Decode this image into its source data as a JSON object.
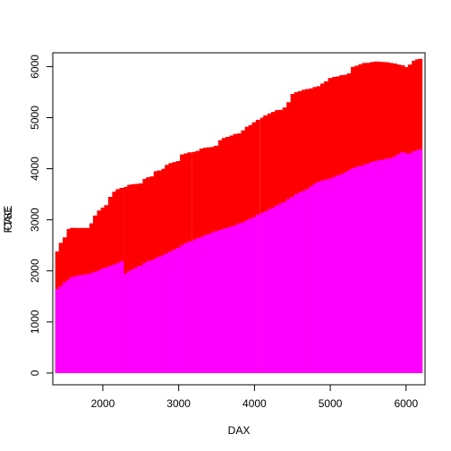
{
  "chart_data": {
    "type": "bar",
    "title": "",
    "xlabel": "DAX",
    "ylabel": [
      "FTSE",
      "CAC"
    ],
    "xlim": [
      1340,
      6250
    ],
    "ylim": [
      -230,
      6270
    ],
    "x_ticks": [
      2000,
      3000,
      4000,
      5000,
      6000
    ],
    "y_ticks": [
      0,
      1000,
      2000,
      3000,
      4000,
      5000,
      6000
    ],
    "grid": false,
    "legend": "none",
    "series": [
      {
        "color": "#ff0000",
        "x": [
          1402,
          1449,
          1500,
          1553,
          1597,
          1651,
          1703,
          1755,
          1798,
          1852,
          1900,
          1953,
          2003,
          2047,
          2100,
          2153,
          2199,
          2248,
          2305,
          2351,
          2399,
          2448,
          2497,
          2555,
          2598,
          2648,
          2700,
          2746,
          2804,
          2847,
          2896,
          2948,
          2996,
          3047,
          3096,
          3145,
          3205,
          3251,
          3303,
          3351,
          3396,
          3448,
          3495,
          3551,
          3599,
          3645,
          3700,
          3747,
          3799,
          3853,
          3903,
          3950,
          3997,
          4046,
          4105,
          4146,
          4199,
          4248,
          4297,
          4349,
          4400,
          4452,
          4505,
          4554,
          4601,
          4651,
          4697,
          4752,
          4799,
          4846,
          4898,
          4947,
          5000,
          5055,
          5103,
          5151,
          5199,
          5249,
          5301,
          5352,
          5402,
          5449,
          5495,
          5552,
          5600,
          5648,
          5697,
          5752,
          5801,
          5852,
          5900,
          5954,
          6002,
          6053,
          6105,
          6149,
          6187
        ],
        "values": [
          2380,
          2550,
          2657,
          2820,
          2843,
          2840,
          2840,
          2840,
          2840,
          2930,
          3083,
          3183,
          3240,
          3287,
          3450,
          3550,
          3600,
          3624,
          3645,
          3685,
          3696,
          3703,
          3711,
          3800,
          3833,
          3850,
          3950,
          3967,
          4000,
          4076,
          4110,
          4130,
          4150,
          4280,
          4300,
          4320,
          4330,
          4350,
          4393,
          4411,
          4420,
          4425,
          4450,
          4559,
          4601,
          4624,
          4650,
          4680,
          4690,
          4750,
          4822,
          4855,
          4910,
          4958,
          4999,
          5044,
          5080,
          5112,
          5147,
          5152,
          5198,
          5303,
          5463,
          5500,
          5519,
          5545,
          5561,
          5574,
          5600,
          5616,
          5668,
          5712,
          5777,
          5796,
          5807,
          5831,
          5839,
          5867,
          5993,
          6019,
          6046,
          6070,
          6073,
          6088,
          6099,
          6096,
          6091,
          6086,
          6070,
          6060,
          6041,
          6027,
          5990,
          6040,
          6114,
          6140,
          6152
        ]
      },
      {
        "color": "#ff00ff",
        "x": [
          1402,
          1449,
          1500,
          1553,
          1597,
          1651,
          1703,
          1755,
          1798,
          1852,
          1900,
          1953,
          2003,
          2047,
          2100,
          2153,
          2199,
          2248,
          2305,
          2351,
          2399,
          2448,
          2497,
          2555,
          2598,
          2648,
          2700,
          2746,
          2804,
          2847,
          2896,
          2948,
          2996,
          3047,
          3096,
          3145,
          3205,
          3251,
          3303,
          3351,
          3396,
          3448,
          3495,
          3551,
          3599,
          3645,
          3700,
          3747,
          3799,
          3853,
          3903,
          3950,
          3997,
          4046,
          4105,
          4146,
          4199,
          4248,
          4297,
          4349,
          4400,
          4452,
          4505,
          4554,
          4601,
          4651,
          4697,
          4752,
          4799,
          4846,
          4898,
          4947,
          5000,
          5055,
          5103,
          5151,
          5199,
          5249,
          5301,
          5352,
          5402,
          5449,
          5495,
          5552,
          5600,
          5648,
          5697,
          5752,
          5801,
          5852,
          5900,
          5954,
          6002,
          6053,
          6105,
          6149,
          6187
        ],
        "values": [
          1640,
          1700,
          1780,
          1830,
          1880,
          1900,
          1917,
          1926,
          1935,
          1958,
          1981,
          2006,
          2050,
          2065,
          2100,
          2122,
          2150,
          2190,
          1950,
          1995,
          2031,
          2070,
          2100,
          2150,
          2188,
          2208,
          2245,
          2280,
          2310,
          2346,
          2380,
          2420,
          2455,
          2500,
          2540,
          2575,
          2600,
          2640,
          2660,
          2695,
          2720,
          2750,
          2774,
          2800,
          2823,
          2845,
          2870,
          2890,
          2928,
          2950,
          2990,
          3020,
          3050,
          3100,
          3133,
          3162,
          3204,
          3240,
          3280,
          3322,
          3350,
          3410,
          3450,
          3500,
          3540,
          3563,
          3601,
          3652,
          3704,
          3746,
          3766,
          3789,
          3806,
          3840,
          3869,
          3891,
          3925,
          3970,
          4009,
          4038,
          4054,
          4072,
          4100,
          4135,
          4147,
          4167,
          4174,
          4200,
          4206,
          4240,
          4283,
          4327,
          4300,
          4300,
          4340,
          4357,
          4380
        ]
      }
    ]
  }
}
